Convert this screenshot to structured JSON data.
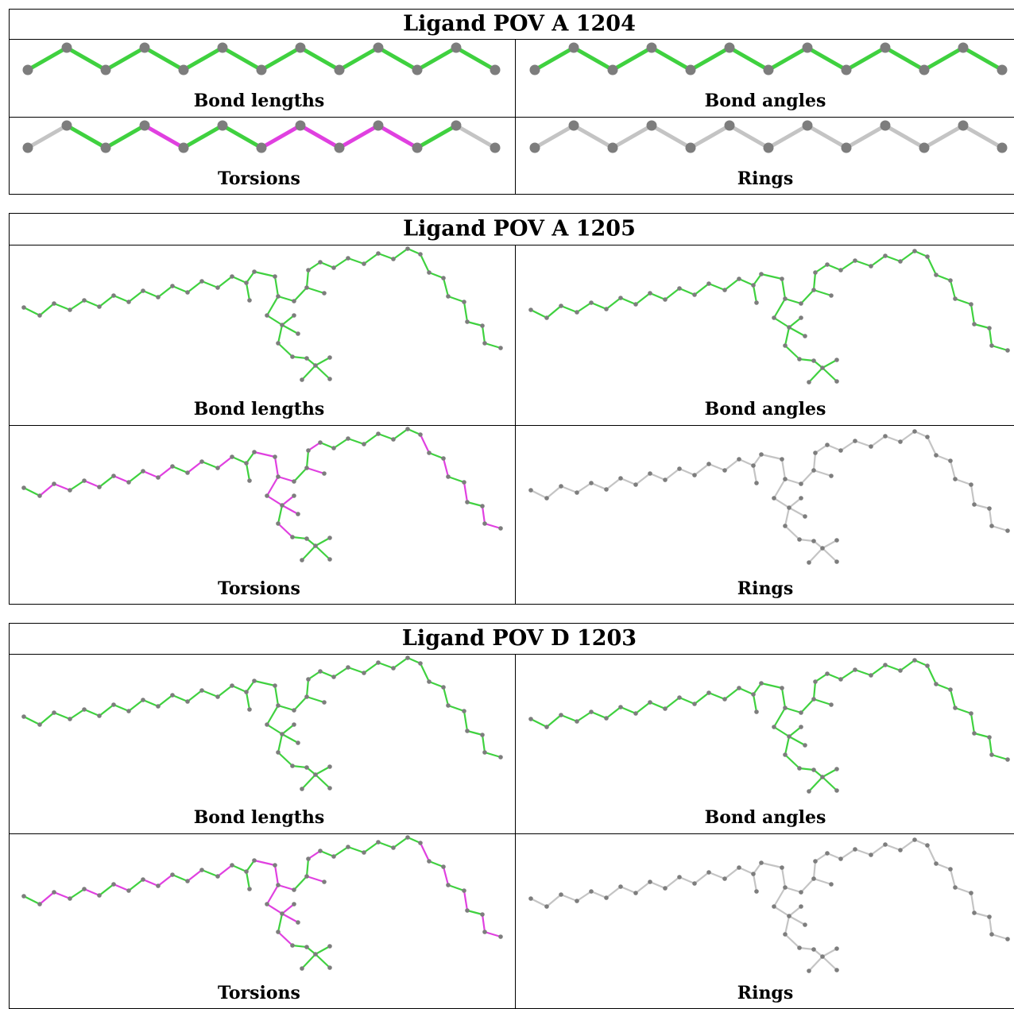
{
  "tables": [
    {
      "title": "Ligand POV A 1204",
      "cells": [
        {
          "caption": "Bond lengths"
        },
        {
          "caption": "Bond angles"
        },
        {
          "caption": "Torsions"
        },
        {
          "caption": "Rings"
        }
      ]
    },
    {
      "title": "Ligand POV A 1205",
      "cells": [
        {
          "caption": "Bond lengths"
        },
        {
          "caption": "Bond angles"
        },
        {
          "caption": "Torsions"
        },
        {
          "caption": "Rings"
        }
      ]
    },
    {
      "title": "Ligand POV D 1203",
      "cells": [
        {
          "caption": "Bond lengths"
        },
        {
          "caption": "Bond angles"
        },
        {
          "caption": "Torsions"
        },
        {
          "caption": "Rings"
        }
      ]
    }
  ]
}
